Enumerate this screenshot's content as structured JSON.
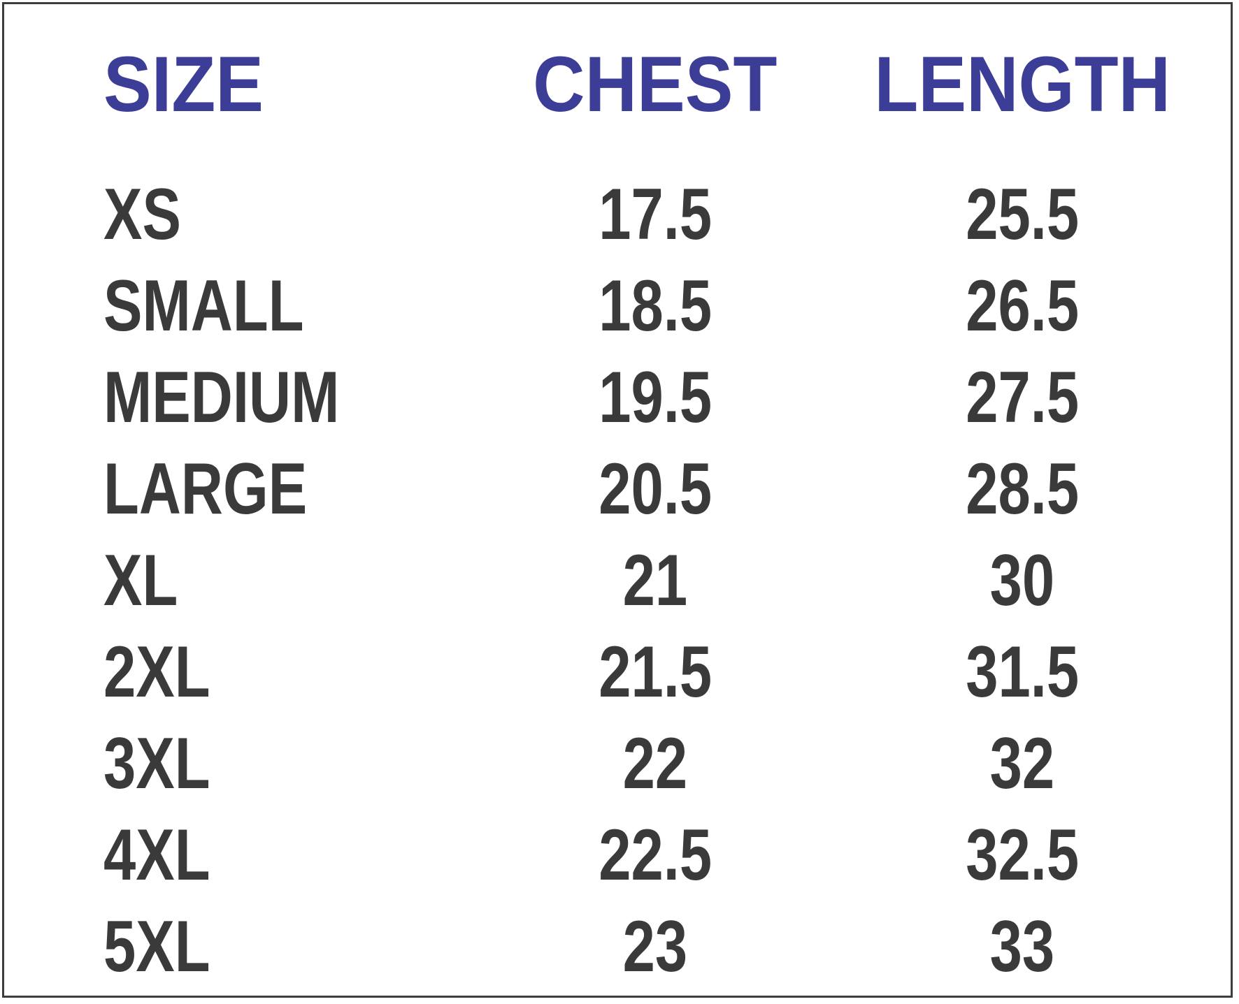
{
  "chart_data": {
    "type": "table",
    "title": "",
    "columns": [
      "SIZE",
      "CHEST",
      "LENGTH"
    ],
    "rows": [
      [
        "XS",
        "17.5",
        "25.5"
      ],
      [
        "SMALL",
        "18.5",
        "26.5"
      ],
      [
        "MEDIUM",
        "19.5",
        "27.5"
      ],
      [
        "LARGE",
        "20.5",
        "28.5"
      ],
      [
        "XL",
        "21",
        "30"
      ],
      [
        "2XL",
        "21.5",
        "31.5"
      ],
      [
        "3XL",
        "22",
        "32"
      ],
      [
        "4XL",
        "22.5",
        "32.5"
      ],
      [
        "5XL",
        "23",
        "33"
      ]
    ],
    "layout_hints": {
      "header_text_color": "#3c3d96",
      "body_text_color": "#3a3a3a",
      "border_color": "#3d3d3d",
      "background": "#ffffff",
      "grid": "off"
    }
  },
  "colors": {
    "header": "#3c3d96",
    "body": "#3a3a3a",
    "border": "#3d3d3d",
    "background": "#ffffff"
  }
}
